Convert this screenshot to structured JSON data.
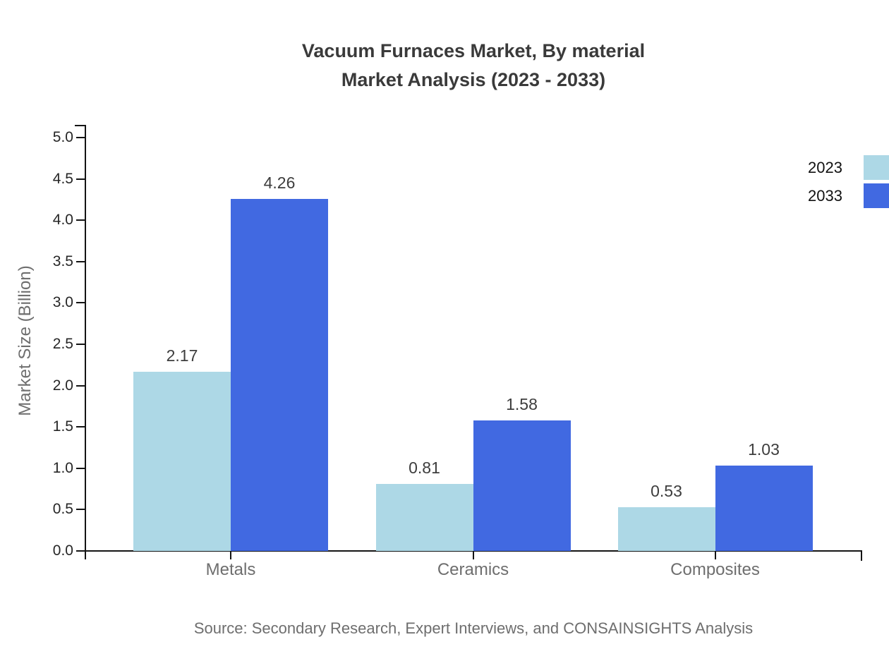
{
  "title": {
    "line1": "Vacuum Furnaces Market, By material",
    "line2": "Market Analysis (2023 - 2033)"
  },
  "source": "Source: Secondary Research, Expert Interviews, and CONSAINSIGHTS Analysis",
  "chart_data": {
    "type": "bar",
    "title": "Vacuum Furnaces Market, By material Market Analysis (2023 - 2033)",
    "categories": [
      "Metals",
      "Ceramics",
      "Composites"
    ],
    "series": [
      {
        "name": "2023",
        "color": "#ADD8E6",
        "values": [
          2.17,
          0.81,
          0.53
        ]
      },
      {
        "name": "2033",
        "color": "#4169E1",
        "values": [
          4.26,
          1.58,
          1.03
        ]
      }
    ],
    "xlabel": "",
    "ylabel": "Market Size (Billion)",
    "ylim": [
      0,
      5
    ],
    "ytick_step": 0.5,
    "grid": false,
    "legend_position": "top-right",
    "value_labels": true,
    "axis_color": "#141414",
    "label_color": "#6e6e6e"
  }
}
